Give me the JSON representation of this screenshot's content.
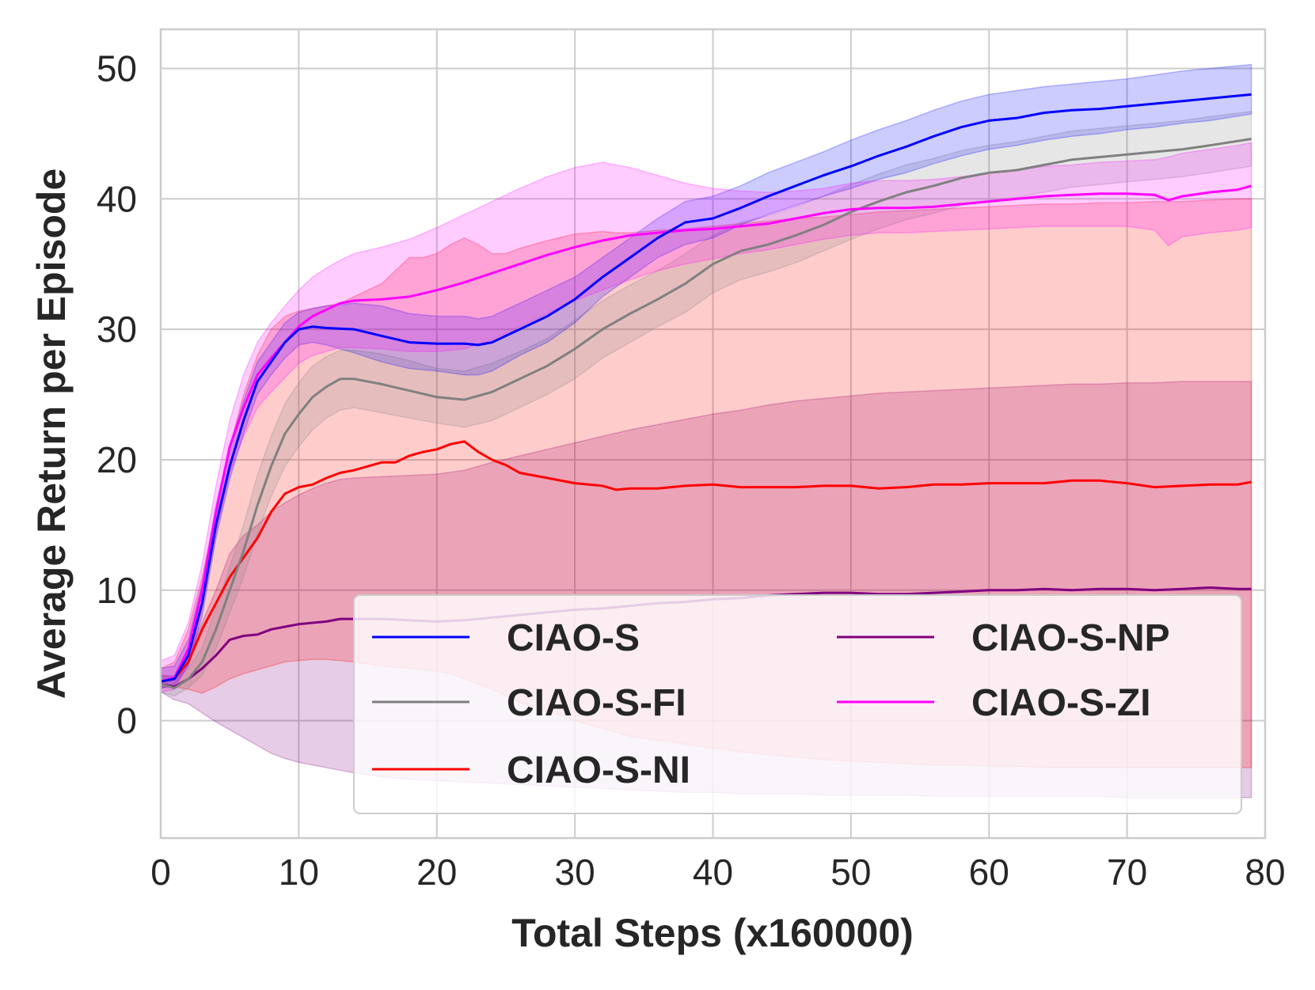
{
  "chart_data": {
    "type": "line",
    "title": "",
    "xlabel": "Total Steps (x160000)",
    "ylabel": "Average Return per Episode",
    "xlim": [
      0,
      80
    ],
    "ylim": [
      -9,
      53
    ],
    "xticks": [
      0,
      10,
      20,
      30,
      40,
      50,
      60,
      70,
      80
    ],
    "yticks": [
      0,
      10,
      20,
      30,
      40,
      50
    ],
    "grid": true,
    "legend_location": "lower-right",
    "series": [
      {
        "name": "CIAO-S",
        "color": "#0000ff",
        "x": [
          0,
          1,
          2,
          3,
          4,
          5,
          6,
          7,
          8,
          9,
          10,
          11,
          12,
          14,
          16,
          18,
          20,
          22,
          23,
          24,
          26,
          28,
          30,
          32,
          34,
          36,
          38,
          40,
          42,
          44,
          46,
          48,
          50,
          52,
          54,
          56,
          58,
          60,
          62,
          64,
          66,
          68,
          70,
          72,
          74,
          76,
          79
        ],
        "y": [
          3,
          3.2,
          5,
          9,
          15,
          19.5,
          23,
          26,
          27.5,
          29,
          30,
          30.2,
          30.1,
          30,
          29.5,
          29,
          28.9,
          28.9,
          28.8,
          29,
          30,
          31,
          32.3,
          34,
          35.5,
          37,
          38.2,
          38.5,
          39.3,
          40.2,
          41,
          41.8,
          42.5,
          43.3,
          44,
          44.8,
          45.5,
          46,
          46.2,
          46.6,
          46.8,
          46.9,
          47.1,
          47.3,
          47.5,
          47.7,
          48
        ],
        "lower": [
          2.5,
          2.7,
          4.2,
          8,
          14,
          18.5,
          22,
          25,
          26.5,
          27.8,
          28.8,
          29,
          28.8,
          28.2,
          27.5,
          27,
          26.8,
          26.5,
          26.5,
          26.8,
          28,
          29,
          30.5,
          32.5,
          34,
          35.5,
          36.5,
          37,
          38,
          38.8,
          39.5,
          40.2,
          40.8,
          41.5,
          42,
          42.7,
          43.3,
          43.8,
          44.1,
          44.5,
          44.8,
          45,
          45.3,
          45.5,
          45.8,
          46,
          46.5
        ],
        "upper": [
          4,
          4.2,
          6.2,
          10.5,
          16.5,
          21,
          24.5,
          27.5,
          29,
          30.5,
          31.3,
          31.6,
          31.8,
          32,
          31.8,
          31.2,
          31,
          31,
          30.8,
          31,
          32,
          33,
          34,
          35.5,
          37,
          38.5,
          39.8,
          40.2,
          41,
          42,
          42.8,
          43.6,
          44.5,
          45.3,
          46,
          46.8,
          47.5,
          48,
          48.3,
          48.6,
          48.8,
          49,
          49.2,
          49.5,
          49.8,
          50,
          50.3
        ]
      },
      {
        "name": "CIAO-S-FI",
        "color": "#808080",
        "x": [
          0,
          1,
          2,
          3,
          4,
          5,
          6,
          7,
          8,
          9,
          10,
          11,
          12,
          13,
          14,
          16,
          18,
          20,
          22,
          24,
          26,
          28,
          30,
          32,
          34,
          36,
          38,
          40,
          42,
          44,
          46,
          48,
          50,
          52,
          54,
          56,
          58,
          60,
          62,
          64,
          66,
          68,
          70,
          72,
          74,
          76,
          79
        ],
        "y": [
          2.8,
          2.5,
          3.2,
          4.5,
          7,
          10,
          13,
          16.5,
          19.5,
          22,
          23.5,
          24.8,
          25.6,
          26.2,
          26.2,
          25.8,
          25.3,
          24.8,
          24.6,
          25.2,
          26.2,
          27.2,
          28.5,
          30,
          31.2,
          32.3,
          33.5,
          35,
          36,
          36.5,
          37.2,
          38,
          39,
          39.8,
          40.5,
          41,
          41.6,
          42,
          42.2,
          42.6,
          43,
          43.2,
          43.4,
          43.6,
          43.8,
          44.1,
          44.6
        ],
        "lower": [
          2.2,
          1.9,
          2.5,
          3.5,
          5.5,
          8.3,
          11,
          14.3,
          17.2,
          19.5,
          21,
          22.3,
          23.2,
          23.8,
          24,
          23.6,
          23.2,
          22.8,
          22.5,
          23,
          24,
          25,
          26.2,
          27.8,
          29,
          30.2,
          31.3,
          32.8,
          33.8,
          34.4,
          35.1,
          36,
          36.9,
          37.7,
          38.4,
          38.9,
          39.5,
          39.9,
          40.1,
          40.5,
          40.9,
          41.1,
          41.3,
          41.5,
          41.7,
          42,
          42.5
        ],
        "upper": [
          3.5,
          3.2,
          4,
          5.6,
          8.6,
          11.8,
          15,
          18.8,
          21.8,
          24.3,
          25.9,
          27.2,
          27.9,
          28.4,
          28.4,
          28.1,
          27.6,
          27,
          26.8,
          27.4,
          28.3,
          29.3,
          30.7,
          32.2,
          33.4,
          34.5,
          35.8,
          37.2,
          38.2,
          38.7,
          39.4,
          40.2,
          41.1,
          41.9,
          42.6,
          43.1,
          43.7,
          44.1,
          44.4,
          44.8,
          45.2,
          45.4,
          45.6,
          45.8,
          46,
          46.3,
          46.7
        ]
      },
      {
        "name": "CIAO-S-NI",
        "color": "#ff0000",
        "x": [
          0,
          1,
          2,
          3,
          4,
          5,
          6,
          7,
          8,
          9,
          10,
          11,
          12,
          13,
          14,
          16,
          17,
          18,
          19,
          20,
          21,
          22,
          23,
          24,
          25,
          26,
          28,
          30,
          32,
          33,
          34,
          36,
          38,
          40,
          42,
          44,
          46,
          48,
          50,
          52,
          54,
          56,
          58,
          60,
          62,
          64,
          66,
          68,
          70,
          72,
          74,
          76,
          78,
          79
        ],
        "y": [
          3,
          3.2,
          4.5,
          7,
          9,
          11,
          12.5,
          14,
          16,
          17.4,
          17.9,
          18.1,
          18.6,
          19,
          19.2,
          19.8,
          19.8,
          20.3,
          20.6,
          20.8,
          21.2,
          21.4,
          20.6,
          20,
          19.6,
          19,
          18.6,
          18.2,
          18,
          17.7,
          17.8,
          17.8,
          18,
          18.1,
          17.9,
          17.9,
          17.9,
          18,
          18,
          17.8,
          17.9,
          18.1,
          18.1,
          18.2,
          18.2,
          18.2,
          18.4,
          18.4,
          18.2,
          17.9,
          18,
          18.1,
          18.1,
          18.3
        ],
        "lower": [
          2.5,
          2.6,
          2.4,
          2.1,
          2.6,
          3.2,
          3.6,
          3.9,
          4.2,
          4.5,
          4.6,
          4.7,
          4.7,
          4.6,
          4.5,
          4.2,
          4.1,
          4,
          3.9,
          3.8,
          3.6,
          3.2,
          2.8,
          2.4,
          1.9,
          1.4,
          0.7,
          0,
          -0.6,
          -0.9,
          -1.2,
          -1.5,
          -1.8,
          -2.1,
          -2.4,
          -2.6,
          -2.8,
          -3,
          -3.1,
          -3.2,
          -3.3,
          -3.4,
          -3.4,
          -3.5,
          -3.5,
          -3.6,
          -3.6,
          -3.6,
          -3.6,
          -3.6,
          -3.6,
          -3.6,
          -3.6,
          -3.6
        ],
        "upper": [
          4,
          4.5,
          7,
          11,
          16,
          21,
          25,
          28,
          30,
          31,
          31.4,
          31.6,
          31.8,
          32,
          32.5,
          33.5,
          34.5,
          35.5,
          35.5,
          35.8,
          36.5,
          37,
          36.5,
          35.8,
          35.8,
          36.2,
          36.8,
          37.3,
          37.5,
          37.4,
          37.4,
          37.6,
          37.7,
          37.9,
          38.1,
          38.3,
          38.5,
          38.6,
          38.8,
          39,
          39.1,
          39.2,
          39.3,
          39.4,
          39.5,
          39.6,
          39.6,
          39.7,
          39.7,
          39.8,
          39.8,
          39.9,
          40,
          40
        ]
      },
      {
        "name": "CIAO-S-NP",
        "color": "#800080",
        "x": [
          0,
          1,
          2,
          3,
          4,
          5,
          6,
          7,
          8,
          9,
          10,
          11,
          12,
          13,
          14,
          16,
          18,
          20,
          22,
          24,
          26,
          28,
          30,
          32,
          34,
          36,
          38,
          40,
          42,
          44,
          46,
          48,
          50,
          52,
          54,
          56,
          58,
          60,
          62,
          64,
          66,
          68,
          70,
          72,
          74,
          76,
          78,
          79
        ],
        "y": [
          2.8,
          2.6,
          3.2,
          4,
          5,
          6.2,
          6.5,
          6.6,
          7,
          7.2,
          7.4,
          7.5,
          7.6,
          7.8,
          7.8,
          7.8,
          7.7,
          7.6,
          7.7,
          7.9,
          8.1,
          8.3,
          8.5,
          8.6,
          8.8,
          9,
          9.1,
          9.3,
          9.4,
          9.6,
          9.7,
          9.8,
          9.8,
          9.7,
          9.7,
          9.8,
          9.9,
          10,
          10,
          10.1,
          10,
          10.1,
          10.1,
          10,
          10.1,
          10.2,
          10.1,
          10.1
        ],
        "lower": [
          2.2,
          1.6,
          1.3,
          0.6,
          -0.1,
          -0.7,
          -1.3,
          -1.9,
          -2.5,
          -2.9,
          -3.2,
          -3.4,
          -3.6,
          -3.8,
          -4,
          -4.3,
          -4.5,
          -4.6,
          -4.7,
          -4.8,
          -4.9,
          -5,
          -5.1,
          -5.2,
          -5.3,
          -5.4,
          -5.5,
          -5.5,
          -5.6,
          -5.6,
          -5.6,
          -5.7,
          -5.7,
          -5.7,
          -5.7,
          -5.8,
          -5.8,
          -5.8,
          -5.8,
          -5.8,
          -5.8,
          -5.8,
          -5.9,
          -5.9,
          -5.9,
          -5.9,
          -5.9,
          -5.9
        ],
        "upper": [
          3.5,
          3.4,
          5,
          7.5,
          10,
          12.8,
          14.2,
          15,
          16,
          16.7,
          17.3,
          17.8,
          18.2,
          18.5,
          18.6,
          18.7,
          18.8,
          18.9,
          19.2,
          19.8,
          20.3,
          20.8,
          21.3,
          21.8,
          22.3,
          22.7,
          23.1,
          23.5,
          23.8,
          24.2,
          24.5,
          24.7,
          24.9,
          25.1,
          25.2,
          25.3,
          25.4,
          25.5,
          25.6,
          25.7,
          25.8,
          25.8,
          25.9,
          25.9,
          26,
          26,
          26,
          26
        ]
      },
      {
        "name": "CIAO-S-ZI",
        "color": "#ff00ff",
        "x": [
          0,
          1,
          2,
          3,
          4,
          5,
          6,
          7,
          8,
          9,
          10,
          11,
          12,
          13,
          14,
          16,
          18,
          20,
          22,
          24,
          26,
          28,
          30,
          32,
          34,
          36,
          38,
          40,
          42,
          44,
          46,
          48,
          50,
          52,
          54,
          56,
          58,
          60,
          62,
          64,
          66,
          68,
          70,
          72,
          73,
          74,
          76,
          78,
          79
        ],
        "y": [
          3,
          3.3,
          5.5,
          10,
          16,
          21,
          24,
          26.5,
          27.8,
          29,
          30.2,
          31,
          31.5,
          32,
          32.2,
          32.3,
          32.5,
          33,
          33.6,
          34.3,
          35,
          35.7,
          36.3,
          36.8,
          37.2,
          37.4,
          37.6,
          37.7,
          37.9,
          38.1,
          38.5,
          38.9,
          39.2,
          39.3,
          39.3,
          39.4,
          39.6,
          39.8,
          40,
          40.2,
          40.3,
          40.4,
          40.4,
          40.3,
          39.9,
          40.2,
          40.5,
          40.7,
          41
        ],
        "lower": [
          2.2,
          2.4,
          4.3,
          8.6,
          14.4,
          19,
          21.8,
          24,
          25.2,
          26.3,
          27.4,
          28,
          28.3,
          28.6,
          28.6,
          28.5,
          28.3,
          28.3,
          28.5,
          29.2,
          30.2,
          31.2,
          32.2,
          33,
          33.8,
          34.5,
          35,
          35.4,
          35.8,
          36.1,
          36.5,
          36.9,
          37.2,
          37.4,
          37.4,
          37.5,
          37.6,
          37.7,
          37.8,
          37.9,
          37.9,
          37.9,
          37.9,
          37.6,
          36.4,
          37.1,
          37.4,
          37.6,
          37.8
        ],
        "upper": [
          4.6,
          5,
          7.5,
          12,
          18,
          23,
          26.5,
          29,
          30.5,
          31.8,
          33,
          34,
          34.7,
          35.3,
          35.8,
          36.3,
          36.9,
          37.8,
          38.8,
          39.8,
          40.8,
          41.7,
          42.4,
          42.8,
          42.4,
          41.8,
          41.2,
          40.8,
          40.6,
          40.5,
          40.6,
          40.8,
          41.2,
          41.4,
          41.4,
          41.5,
          41.7,
          42,
          42.2,
          42.5,
          42.6,
          42.8,
          42.9,
          43,
          43.2,
          43.5,
          43.8,
          44.1,
          44.3
        ]
      }
    ],
    "legend": {
      "columns": 2,
      "entries": [
        "CIAO-S",
        "CIAO-S-FI",
        "CIAO-S-NI",
        "CIAO-S-NP",
        "CIAO-S-ZI"
      ]
    }
  }
}
